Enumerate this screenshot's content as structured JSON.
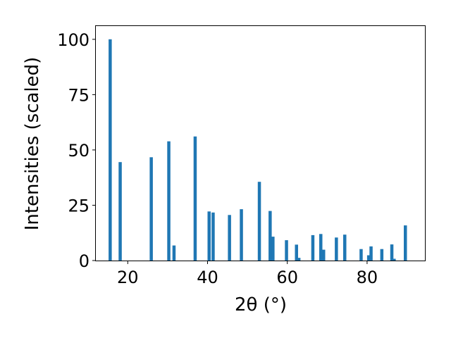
{
  "chart_data": {
    "type": "bar",
    "xlabel": "2θ (°)",
    "ylabel": "Intensities (scaled)",
    "xlim": [
      12,
      94.5
    ],
    "ylim": [
      0,
      106
    ],
    "xticks": [
      20,
      40,
      60,
      80
    ],
    "yticks": [
      0,
      25,
      50,
      75,
      100
    ],
    "bar_color": "#1f77b4",
    "bar_width_deg": 0.8,
    "grid": false,
    "points": [
      {
        "x": 15.6,
        "y": 100
      },
      {
        "x": 18.1,
        "y": 44.5
      },
      {
        "x": 25.9,
        "y": 46.7
      },
      {
        "x": 30.3,
        "y": 53.9
      },
      {
        "x": 31.6,
        "y": 6.8
      },
      {
        "x": 36.9,
        "y": 56.1
      },
      {
        "x": 40.4,
        "y": 22.2
      },
      {
        "x": 41.4,
        "y": 21.7
      },
      {
        "x": 45.5,
        "y": 20.6
      },
      {
        "x": 48.5,
        "y": 23.2
      },
      {
        "x": 53.0,
        "y": 35.6
      },
      {
        "x": 55.7,
        "y": 22.4
      },
      {
        "x": 56.4,
        "y": 10.8
      },
      {
        "x": 59.8,
        "y": 9.2
      },
      {
        "x": 62.3,
        "y": 7.2
      },
      {
        "x": 62.9,
        "y": 1.2
      },
      {
        "x": 66.4,
        "y": 11.5
      },
      {
        "x": 68.4,
        "y": 12.0
      },
      {
        "x": 69.1,
        "y": 4.9
      },
      {
        "x": 72.3,
        "y": 10.4
      },
      {
        "x": 74.4,
        "y": 11.7
      },
      {
        "x": 78.5,
        "y": 5.2
      },
      {
        "x": 80.4,
        "y": 2.4
      },
      {
        "x": 81.0,
        "y": 6.4
      },
      {
        "x": 83.7,
        "y": 5.2
      },
      {
        "x": 86.2,
        "y": 7.3
      },
      {
        "x": 86.8,
        "y": 0.8
      },
      {
        "x": 89.6,
        "y": 15.9
      }
    ]
  }
}
